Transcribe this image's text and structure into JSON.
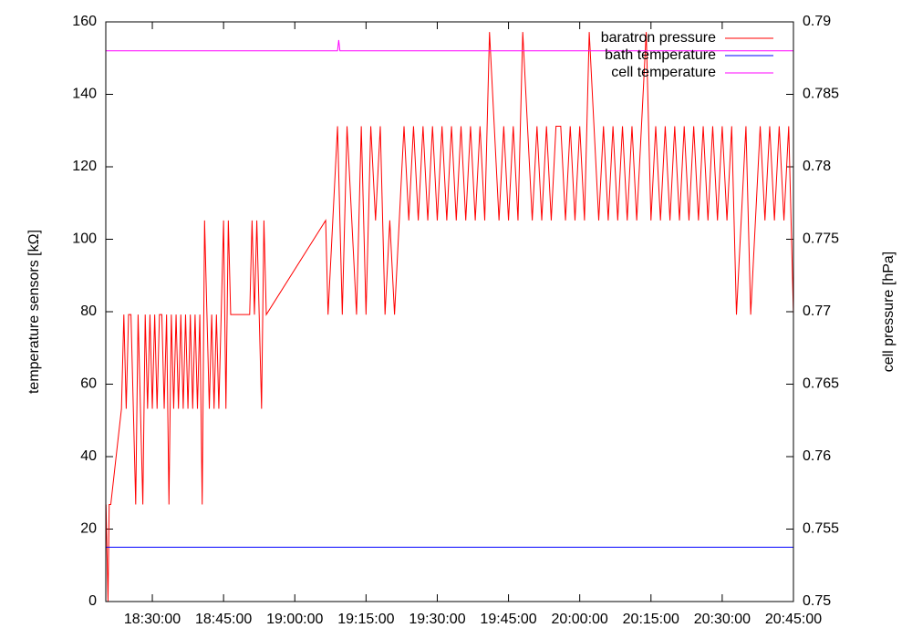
{
  "chart_data": {
    "type": "line",
    "y_label": "temperature sensors [kΩ]",
    "y2_label": "cell pressure [hPa]",
    "xlim": [
      "18:20:12",
      "20:45:00"
    ],
    "xticks": [
      "18:30:00",
      "18:45:00",
      "19:00:00",
      "19:15:00",
      "19:30:00",
      "19:45:00",
      "20:00:00",
      "20:15:00",
      "20:30:00",
      "20:45:00"
    ],
    "ylim": [
      0,
      160
    ],
    "yticks": [
      0,
      20,
      40,
      60,
      80,
      100,
      120,
      140,
      160
    ],
    "y2lim": [
      0.75,
      0.79
    ],
    "y2ticks": [
      0.75,
      0.755,
      0.76,
      0.765,
      0.77,
      0.775,
      0.78,
      0.785,
      0.79
    ],
    "legend": "top-right",
    "series": [
      {
        "name": "baratron pressure",
        "color": "#ff0000",
        "axis": "y2",
        "x": [
          "18:20:15",
          "18:20:40",
          "18:20:55",
          "18:21:15",
          "18:23:30",
          "18:24:00",
          "18:24:30",
          "18:25:00",
          "18:25:30",
          "18:26:00",
          "18:26:30",
          "18:27:00",
          "18:27:30",
          "18:28:00",
          "18:28:30",
          "18:29:00",
          "18:29:30",
          "18:30:00",
          "18:30:30",
          "18:31:00",
          "18:31:30",
          "18:32:00",
          "18:32:30",
          "18:33:00",
          "18:33:30",
          "18:34:00",
          "18:34:30",
          "18:35:00",
          "18:35:30",
          "18:36:00",
          "18:36:30",
          "18:37:00",
          "18:37:30",
          "18:38:00",
          "18:38:30",
          "18:39:00",
          "18:39:30",
          "18:40:00",
          "18:40:30",
          "18:41:00",
          "18:41:30",
          "18:42:00",
          "18:42:30",
          "18:43:00",
          "18:43:30",
          "18:44:00",
          "18:44:30",
          "18:45:00",
          "18:45:30",
          "18:46:00",
          "18:46:30",
          "18:47:00",
          "18:47:30",
          "18:48:00",
          "18:48:30",
          "18:49:00",
          "18:49:30",
          "18:50:00",
          "18:50:30",
          "18:51:00",
          "18:51:30",
          "18:52:00",
          "18:52:30",
          "18:53:00",
          "18:53:30",
          "18:54:00",
          "19:06:30",
          "19:07:00",
          "19:08:00",
          "19:09:00",
          "19:10:00",
          "19:11:00",
          "19:12:00",
          "19:13:00",
          "19:14:00",
          "19:15:00",
          "19:16:00",
          "19:17:00",
          "19:18:00",
          "19:19:00",
          "19:20:00",
          "19:21:00",
          "19:22:00",
          "19:23:00",
          "19:24:00",
          "19:25:00",
          "19:26:00",
          "19:27:00",
          "19:28:00",
          "19:29:00",
          "19:30:00",
          "19:31:00",
          "19:32:00",
          "19:33:00",
          "19:34:00",
          "19:35:00",
          "19:36:00",
          "19:37:00",
          "19:38:00",
          "19:39:00",
          "19:40:00",
          "19:41:00",
          "19:42:00",
          "19:43:00",
          "19:44:00",
          "19:45:00",
          "19:46:00",
          "19:47:00",
          "19:48:00",
          "19:49:00",
          "19:50:00",
          "19:51:00",
          "19:52:00",
          "19:53:00",
          "19:54:00",
          "19:55:00",
          "19:56:00",
          "19:57:00",
          "19:58:00",
          "19:59:00",
          "20:00:00",
          "20:01:00",
          "20:02:00",
          "20:03:00",
          "20:04:00",
          "20:05:00",
          "20:06:00",
          "20:07:00",
          "20:08:00",
          "20:09:00",
          "20:10:00",
          "20:11:00",
          "20:12:00",
          "20:13:00",
          "20:14:00",
          "20:15:00",
          "20:16:00",
          "20:17:00",
          "20:18:00",
          "20:19:00",
          "20:20:00",
          "20:21:00",
          "20:22:00",
          "20:23:00",
          "20:24:00",
          "20:25:00",
          "20:26:00",
          "20:27:00",
          "20:28:00",
          "20:29:00",
          "20:30:00",
          "20:31:00",
          "20:32:00",
          "20:33:00",
          "20:34:00",
          "20:35:00",
          "20:36:00",
          "20:37:00",
          "20:38:00",
          "20:39:00",
          "20:40:00",
          "20:41:00",
          "20:42:00",
          "20:43:00",
          "20:44:00",
          "20:45:00"
        ],
        "values": [
          0.7567,
          0.75,
          0.7567,
          0.7567,
          0.7633,
          0.7698,
          0.7633,
          0.7698,
          0.7698,
          0.7633,
          0.7567,
          0.7698,
          0.7633,
          0.7567,
          0.7698,
          0.7633,
          0.7698,
          0.7633,
          0.7698,
          0.7633,
          0.7698,
          0.7698,
          0.7633,
          0.7698,
          0.7567,
          0.7698,
          0.7633,
          0.7698,
          0.7633,
          0.7698,
          0.7633,
          0.7698,
          0.7633,
          0.7698,
          0.7633,
          0.7698,
          0.7633,
          0.7698,
          0.7567,
          0.7763,
          0.7698,
          0.7633,
          0.7698,
          0.7633,
          0.7698,
          0.7633,
          0.7698,
          0.7763,
          0.7633,
          0.7763,
          0.7698,
          0.7698,
          0.7698,
          0.7698,
          0.7698,
          0.7698,
          0.7698,
          0.7698,
          0.7698,
          0.7763,
          0.7698,
          0.7763,
          0.7698,
          0.7633,
          0.7763,
          0.7698,
          0.7763,
          0.7698,
          0.7763,
          0.7828,
          0.7698,
          0.7828,
          0.7763,
          0.7698,
          0.7828,
          0.7698,
          0.7828,
          0.7763,
          0.7828,
          0.7698,
          0.7763,
          0.7698,
          0.7763,
          0.7828,
          0.7763,
          0.7828,
          0.7763,
          0.7828,
          0.7763,
          0.7828,
          0.7763,
          0.7828,
          0.7763,
          0.7828,
          0.7763,
          0.7828,
          0.7763,
          0.7828,
          0.7763,
          0.7828,
          0.7763,
          0.7893,
          0.7828,
          0.7763,
          0.7828,
          0.7763,
          0.7828,
          0.7763,
          0.7893,
          0.7828,
          0.7763,
          0.7828,
          0.7763,
          0.7828,
          0.7763,
          0.7828,
          0.7828,
          0.7763,
          0.7828,
          0.7763,
          0.7828,
          0.7763,
          0.7893,
          0.7828,
          0.7763,
          0.7828,
          0.7763,
          0.7828,
          0.7763,
          0.7828,
          0.7763,
          0.7828,
          0.7763,
          0.7828,
          0.7893,
          0.7763,
          0.7828,
          0.7763,
          0.7828,
          0.7763,
          0.7828,
          0.7763,
          0.7828,
          0.7763,
          0.7828,
          0.7763,
          0.7828,
          0.7763,
          0.7828,
          0.7763,
          0.7828,
          0.7763,
          0.7828,
          0.7698,
          0.7763,
          0.7828,
          0.7698,
          0.7763,
          0.7828,
          0.7763,
          0.7828,
          0.7763,
          0.7828,
          0.7763,
          0.7828,
          0.7698
        ]
      },
      {
        "name": "bath temperature",
        "color": "#0000ff",
        "x": [
          "18:20:12",
          "20:45:00"
        ],
        "values": [
          15,
          15
        ]
      },
      {
        "name": "cell temperature",
        "color": "#ff00ff",
        "x": [
          "18:20:12",
          "19:09:00",
          "19:09:15",
          "19:09:30",
          "20:45:00"
        ],
        "values": [
          152,
          152,
          155,
          152,
          152
        ]
      }
    ]
  }
}
